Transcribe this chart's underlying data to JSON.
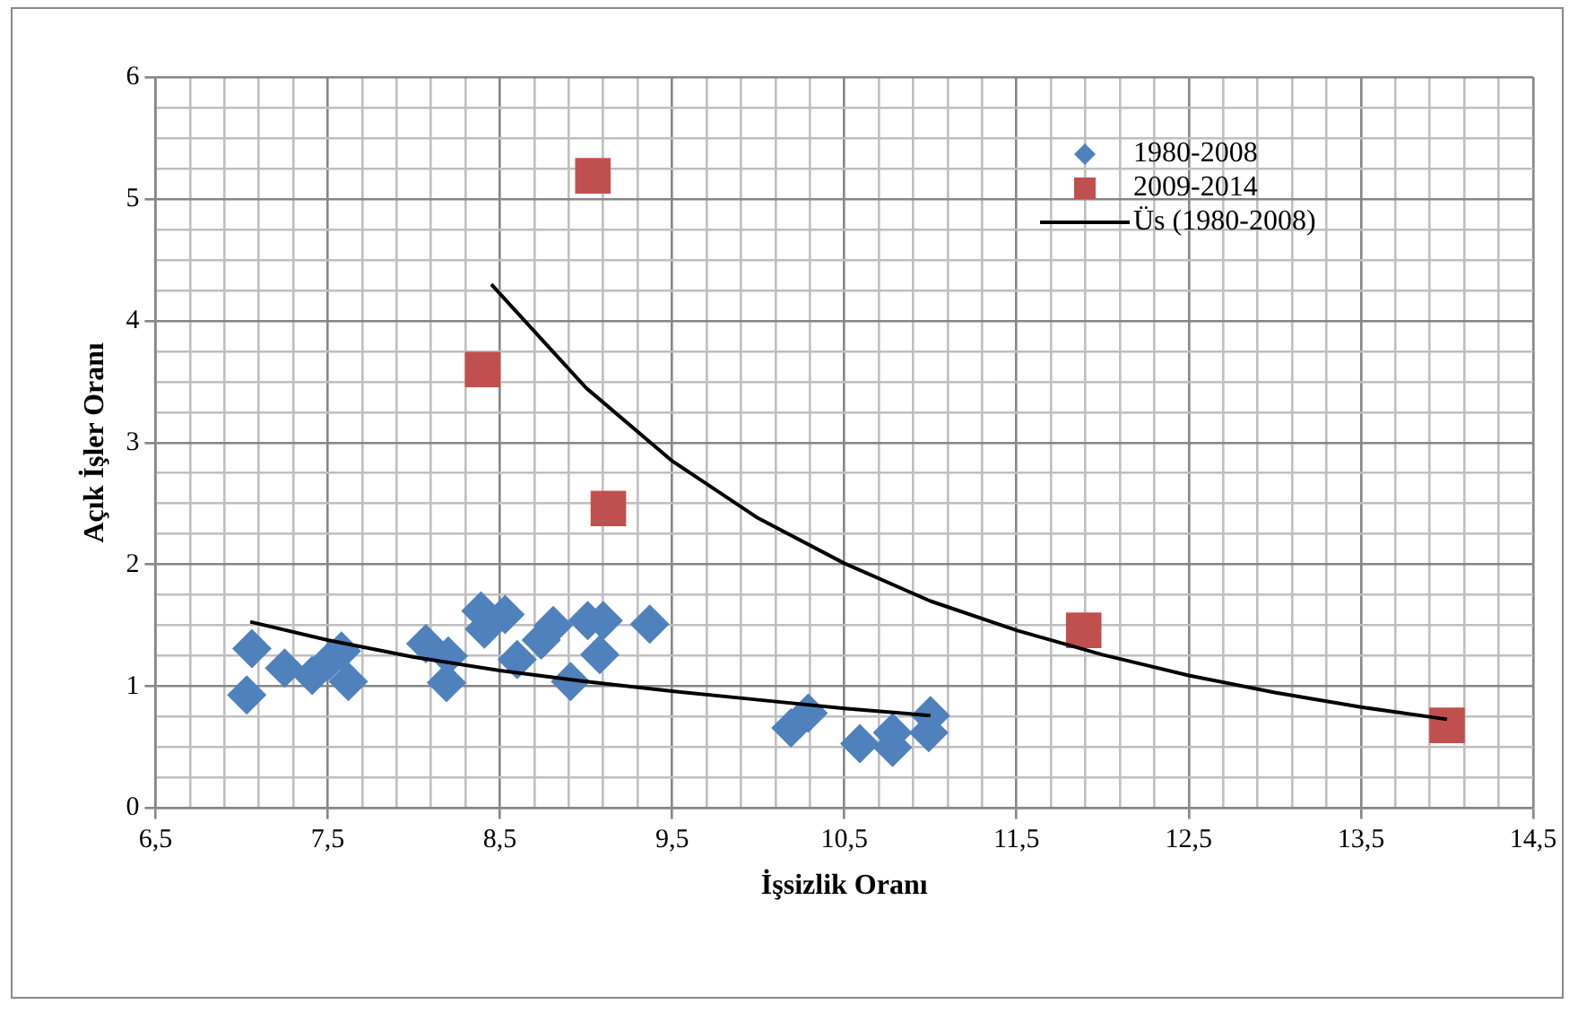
{
  "chart_data": {
    "type": "scatter",
    "xlabel": "İşsizlik Oranı",
    "ylabel": "Açık İşler Oranı",
    "xlim": [
      6.5,
      14.5
    ],
    "ylim": [
      0,
      6
    ],
    "xticks": [
      {
        "value": 6.5,
        "label": "6,5"
      },
      {
        "value": 6.7,
        "label": null
      },
      {
        "value": 6.9,
        "label": null
      },
      {
        "value": 7.1,
        "label": null
      },
      {
        "value": 7.3,
        "label": null
      },
      {
        "value": 7.5,
        "label": "7,5"
      },
      {
        "value": 7.7,
        "label": null
      },
      {
        "value": 7.9,
        "label": null
      },
      {
        "value": 8.1,
        "label": null
      },
      {
        "value": 8.3,
        "label": null
      },
      {
        "value": 8.5,
        "label": "8,5"
      },
      {
        "value": 8.7,
        "label": null
      },
      {
        "value": 8.9,
        "label": null
      },
      {
        "value": 9.1,
        "label": null
      },
      {
        "value": 9.3,
        "label": null
      },
      {
        "value": 9.5,
        "label": "9,5"
      },
      {
        "value": 9.7,
        "label": null
      },
      {
        "value": 9.9,
        "label": null
      },
      {
        "value": 10.1,
        "label": null
      },
      {
        "value": 10.3,
        "label": null
      },
      {
        "value": 10.5,
        "label": "10,5"
      },
      {
        "value": 10.7,
        "label": null
      },
      {
        "value": 10.9,
        "label": null
      },
      {
        "value": 11.1,
        "label": null
      },
      {
        "value": 11.3,
        "label": null
      },
      {
        "value": 11.5,
        "label": "11,5"
      },
      {
        "value": 11.7,
        "label": null
      },
      {
        "value": 11.9,
        "label": null
      },
      {
        "value": 12.1,
        "label": null
      },
      {
        "value": 12.3,
        "label": null
      },
      {
        "value": 12.5,
        "label": "12,5"
      },
      {
        "value": 12.7,
        "label": null
      },
      {
        "value": 12.9,
        "label": null
      },
      {
        "value": 13.1,
        "label": null
      },
      {
        "value": 13.3,
        "label": null
      },
      {
        "value": 13.5,
        "label": "13,5"
      },
      {
        "value": 13.7,
        "label": null
      },
      {
        "value": 13.9,
        "label": null
      },
      {
        "value": 14.1,
        "label": null
      },
      {
        "value": 14.3,
        "label": null
      },
      {
        "value": 14.5,
        "label": "14,5"
      }
    ],
    "yticks": [
      0,
      {
        "value": 0.25,
        "label": null
      },
      {
        "value": 0.5,
        "label": null
      },
      {
        "value": 0.75,
        "label": null
      },
      1,
      {
        "value": 1.25,
        "label": null
      },
      {
        "value": 1.5,
        "label": null
      },
      {
        "value": 1.75,
        "label": null
      },
      2,
      {
        "value": 2.25,
        "label": null
      },
      {
        "value": 2.5,
        "label": null
      },
      {
        "value": 2.75,
        "label": null
      },
      3,
      {
        "value": 3.25,
        "label": null
      },
      {
        "value": 3.5,
        "label": null
      },
      {
        "value": 3.75,
        "label": null
      },
      4,
      {
        "value": 4.25,
        "label": null
      },
      {
        "value": 4.5,
        "label": null
      },
      {
        "value": 4.75,
        "label": null
      },
      5,
      {
        "value": 5.25,
        "label": null
      },
      {
        "value": 5.5,
        "label": null
      },
      {
        "value": 5.75,
        "label": null
      },
      6
    ],
    "grid": true,
    "legend": "top right",
    "series": [
      {
        "name": "1980-2008",
        "marker": "diamond",
        "color": "#4f81bd",
        "x": [
          7.03,
          7.06,
          7.25,
          7.41,
          7.51,
          7.58,
          7.62,
          8.07,
          8.2,
          8.19,
          8.39,
          8.41,
          8.53,
          8.6,
          8.74,
          8.81,
          8.91,
          9.01,
          9.1,
          9.08,
          9.37,
          10.19,
          10.29,
          10.59,
          10.78,
          10.78,
          10.99,
          11.0
        ],
        "values": [
          0.93,
          1.31,
          1.15,
          1.09,
          1.21,
          1.29,
          1.04,
          1.35,
          1.25,
          1.03,
          1.62,
          1.47,
          1.59,
          1.22,
          1.38,
          1.5,
          1.04,
          1.54,
          1.54,
          1.26,
          1.51,
          0.66,
          0.78,
          0.53,
          0.62,
          0.5,
          0.62,
          0.76
        ]
      },
      {
        "name": "2009-2014",
        "marker": "square",
        "color": "#c0504d",
        "x": [
          9.04,
          8.4,
          9.13,
          11.89,
          14.0
        ],
        "values": [
          5.19,
          3.6,
          2.46,
          1.46,
          0.68
        ]
      },
      {
        "name": "Üs (1980-2008)",
        "type": "line",
        "marker": "none",
        "color": "#000000",
        "x": [
          7.05,
          7.5,
          8,
          8.5,
          9,
          9.5,
          10,
          10.5,
          11
        ],
        "values": [
          1.53,
          1.38,
          1.24,
          1.13,
          1.04,
          0.96,
          0.89,
          0.82,
          0.76
        ]
      },
      {
        "type": "line",
        "marker": "none",
        "color": "#000000",
        "x": [
          8.45,
          9,
          9.5,
          10,
          10.5,
          11,
          11.5,
          12,
          12.5,
          13,
          13.5,
          14
        ],
        "values": [
          4.3,
          3.45,
          2.85,
          2.38,
          2.01,
          1.7,
          1.46,
          1.26,
          1.09,
          0.95,
          0.83,
          0.73
        ]
      }
    ]
  }
}
